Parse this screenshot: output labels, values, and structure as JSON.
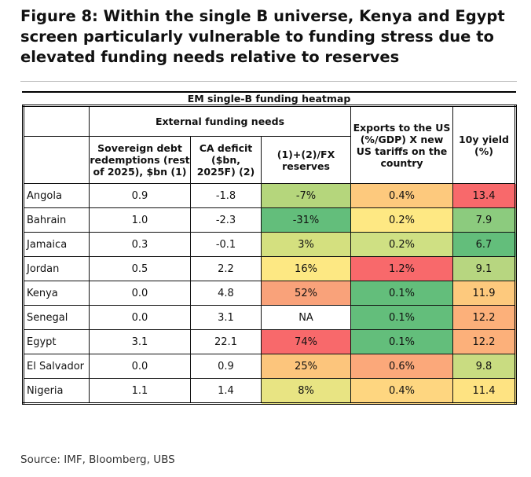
{
  "title": "Figure 8: Within the single B universe, Kenya and Egypt screen particularly vulnerable to funding stress due to elevated funding needs relative to reserves",
  "table": {
    "caption": "EM single-B funding heatmap",
    "group_header": "External funding needs",
    "headers": [
      "Sovereign debt redemptions (rest of 2025), $bn (1)",
      "CA deficit ($bn, 2025F) (2)",
      "(1)+(2)/FX reserves",
      "Exports to the US (%/GDP) X new US tariffs on the country",
      "10y yield (%)"
    ],
    "rows": [
      {
        "country": "Angola",
        "debt": "0.9",
        "ca": "-1.8",
        "fx": "-7%",
        "exports": "0.4%",
        "yield": "13.4",
        "colors": [
          "#b5d67c",
          "#fdc97d",
          "#f8696b"
        ]
      },
      {
        "country": "Bahrain",
        "debt": "1.0",
        "ca": "-2.3",
        "fx": "-31%",
        "exports": "0.2%",
        "yield": "7.9",
        "colors": [
          "#63be7b",
          "#fee883",
          "#8ccb7e"
        ]
      },
      {
        "country": "Jamaica",
        "debt": "0.3",
        "ca": "-0.1",
        "fx": "3%",
        "exports": "0.2%",
        "yield": "6.7",
        "colors": [
          "#d4e07f",
          "#cfe083",
          "#63be7b"
        ]
      },
      {
        "country": "Jordan",
        "debt": "0.5",
        "ca": "2.2",
        "fx": "16%",
        "exports": "1.2%",
        "yield": "9.1",
        "colors": [
          "#fde883",
          "#f8696b",
          "#b7d680"
        ]
      },
      {
        "country": "Kenya",
        "debt": "0.0",
        "ca": "4.8",
        "fx": "52%",
        "exports": "0.1%",
        "yield": "11.9",
        "colors": [
          "#f9a27a",
          "#63be7b",
          "#fdc97d"
        ]
      },
      {
        "country": "Senegal",
        "debt": "0.0",
        "ca": "3.1",
        "fx": "NA",
        "exports": "0.1%",
        "yield": "12.2",
        "colors": [
          "#ffffff",
          "#63be7b",
          "#fcb07a"
        ]
      },
      {
        "country": "Egypt",
        "debt": "3.1",
        "ca": "22.1",
        "fx": "74%",
        "exports": "0.1%",
        "yield": "12.2",
        "colors": [
          "#f8696b",
          "#63be7b",
          "#fcb07a"
        ]
      },
      {
        "country": "El Salvador",
        "debt": "0.0",
        "ca": "0.9",
        "fx": "25%",
        "exports": "0.6%",
        "yield": "9.8",
        "colors": [
          "#fcc57c",
          "#fba87a",
          "#c9dc81"
        ]
      },
      {
        "country": "Nigeria",
        "debt": "1.1",
        "ca": "1.4",
        "fx": "8%",
        "exports": "0.4%",
        "yield": "11.4",
        "colors": [
          "#e8e483",
          "#fed680",
          "#fee382"
        ]
      }
    ]
  },
  "source": "Source: IMF, Bloomberg, UBS"
}
